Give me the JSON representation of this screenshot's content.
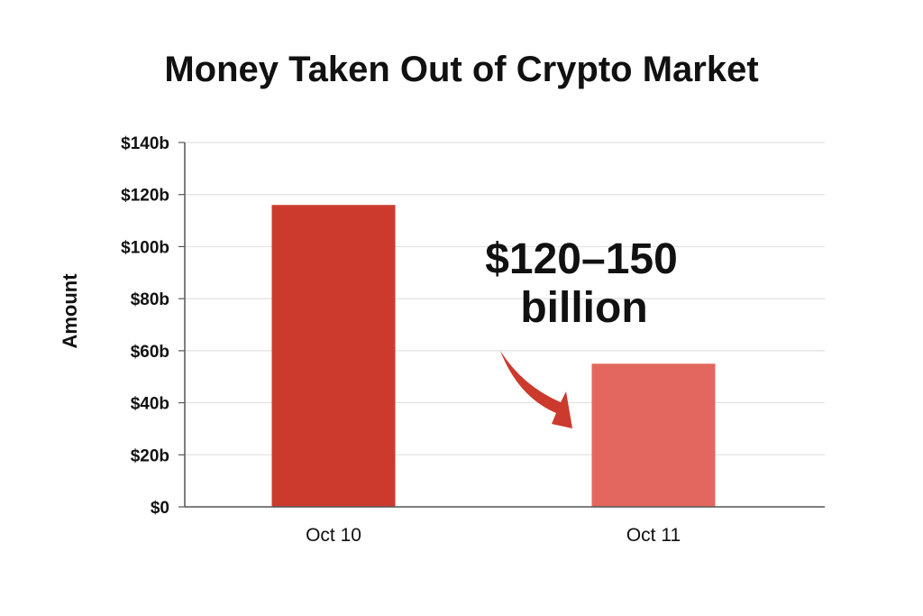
{
  "chart_data": {
    "type": "bar",
    "title": "Money Taken Out of Crypto Market",
    "xlabel": "",
    "ylabel": "Amount",
    "categories": [
      "Oct 10",
      "Oct 11"
    ],
    "values": [
      116,
      55
    ],
    "unit": "billion USD",
    "ylim": [
      0,
      140
    ],
    "yticks": [
      0,
      20,
      40,
      60,
      80,
      100,
      120,
      140
    ],
    "ytick_labels": [
      "$0",
      "$20b",
      "$40b",
      "$60b",
      "$80b",
      "$100b",
      "$120b",
      "$140b"
    ],
    "grid": true,
    "legend": "none",
    "bar_colors": [
      "#CC3A2E",
      "#E3675F"
    ],
    "annotation": {
      "line1": "$120–150",
      "line2": "billion",
      "arrow_color": "#CC3A2E"
    }
  }
}
